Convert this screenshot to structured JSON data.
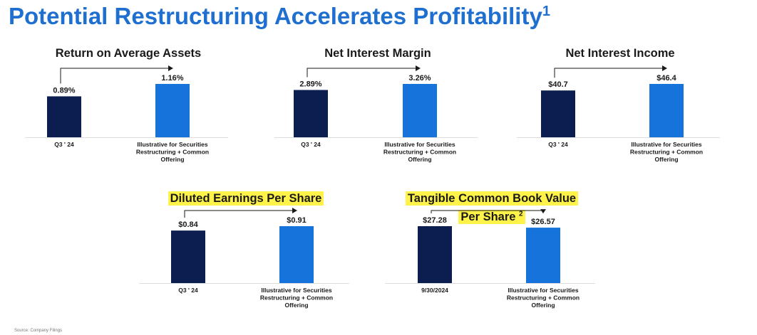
{
  "title": "Potential Restructuring Accelerates Profitability",
  "title_footnote_marker": "1",
  "footnote": "Source: Company Filings",
  "colors": {
    "title": "#1f6fd1",
    "bar_current": "#0b1e4f",
    "bar_illustrative": "#1673dc",
    "highlight": "#fff34a"
  },
  "chart_data": [
    {
      "type": "bar",
      "title": "Return on Average Assets",
      "title_superscript": "",
      "highlighted": false,
      "categories": [
        "Q3 ' 24",
        "Illustrative for Securities Restructuring + Common Offering"
      ],
      "category_lines": [
        [
          "Q3 ' 24"
        ],
        [
          "Illustrative for Securities",
          "Restructuring + Common",
          "Offering"
        ]
      ],
      "values": [
        0.89,
        1.16
      ],
      "value_labels": [
        "0.89%",
        "1.16%"
      ],
      "unit": "%",
      "ylim": [
        0,
        1.6
      ],
      "arrow_direction": "up"
    },
    {
      "type": "bar",
      "title": "Net Interest Margin",
      "title_superscript": "",
      "highlighted": false,
      "categories": [
        "Q3 ' 24",
        "Illustrative for Securities Restructuring + Common Offering"
      ],
      "category_lines": [
        [
          "Q3 ' 24"
        ],
        [
          "Illustrative for Securities",
          "Restructuring + Common",
          "Offering"
        ]
      ],
      "values": [
        2.89,
        3.26
      ],
      "value_labels": [
        "2.89%",
        "3.26%"
      ],
      "unit": "%",
      "ylim": [
        0,
        4.2
      ],
      "arrow_direction": "up"
    },
    {
      "type": "bar",
      "title": "Net Interest Income",
      "title_superscript": "",
      "highlighted": false,
      "categories": [
        "Q3 ' 24",
        "Illustrative for Securities Restructuring + Common Offering"
      ],
      "category_lines": [
        [
          "Q3 ' 24"
        ],
        [
          "Illustrative for Securities",
          "Restructuring + Common",
          "Offering"
        ]
      ],
      "values": [
        40.7,
        46.4
      ],
      "value_labels": [
        "$40.7",
        "$46.4"
      ],
      "unit": "$",
      "ylim": [
        0,
        63
      ],
      "arrow_direction": "up"
    },
    {
      "type": "bar",
      "title": "Diluted Earnings Per Share",
      "title_superscript": "",
      "highlighted": true,
      "categories": [
        "Q3 ' 24",
        "Illustrative for Securities Restructuring + Common Offering"
      ],
      "category_lines": [
        [
          "Q3 ' 24"
        ],
        [
          "Illustrative for Securities",
          "Restructuring + Common",
          "Offering"
        ]
      ],
      "values": [
        0.84,
        0.91
      ],
      "value_labels": [
        "$0.84",
        "$0.91"
      ],
      "unit": "$",
      "ylim": [
        0,
        1.1
      ],
      "arrow_direction": "up"
    },
    {
      "type": "bar",
      "title": "Tangible Common Book Value Per Share",
      "title_lines": [
        "Tangible Common Book Value",
        "Per Share"
      ],
      "title_superscript": "2",
      "highlighted": true,
      "categories": [
        "9/30/2024",
        "Illustrative for Securities Restructuring + Common Offering"
      ],
      "category_lines": [
        [
          "9/30/2024"
        ],
        [
          "Illustrative for Securities",
          "Restructuring + Common",
          "Offering"
        ]
      ],
      "values": [
        27.28,
        26.57
      ],
      "value_labels": [
        "$27.28",
        "$26.57"
      ],
      "unit": "$",
      "ylim": [
        0,
        35
      ],
      "arrow_direction": "down"
    }
  ]
}
